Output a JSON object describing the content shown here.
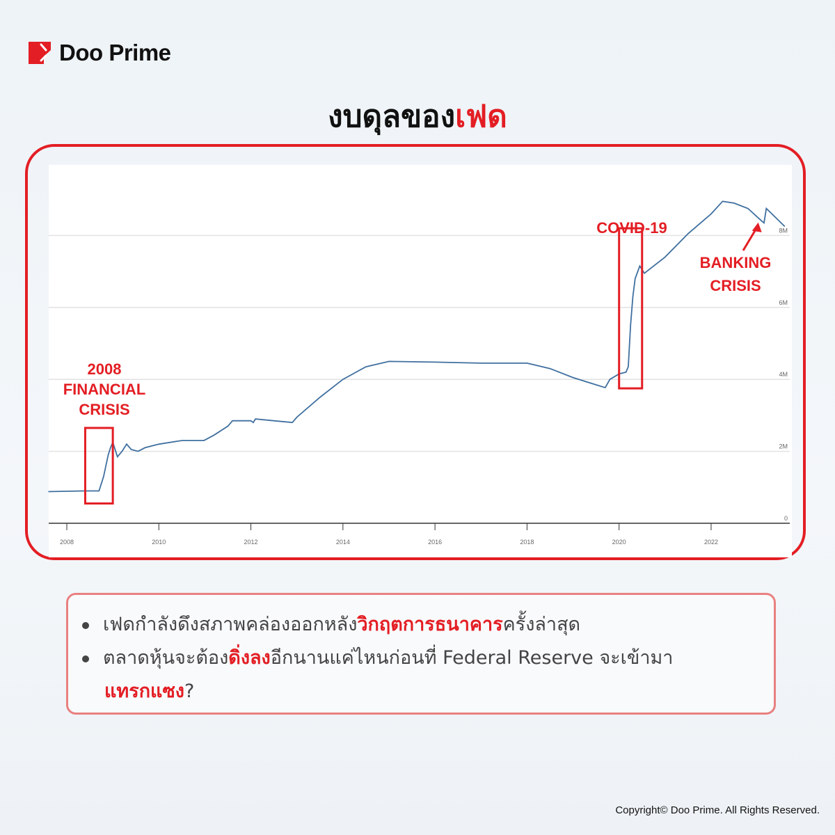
{
  "brand": {
    "name": "Doo Prime",
    "color": "#e31e24"
  },
  "title": {
    "prefix": "งบดุลของ",
    "highlight": "เฟด"
  },
  "chart_data": {
    "type": "line",
    "title": "",
    "xlabel": "",
    "ylabel": "",
    "xlim": [
      2007.6,
      2023.6
    ],
    "ylim": [
      0,
      9.5
    ],
    "x_ticks": [
      "2008",
      "2010",
      "2012",
      "2014",
      "2016",
      "2018",
      "2020",
      "2022"
    ],
    "y_ticks": [
      "0",
      "2M",
      "4M",
      "6M",
      "8M"
    ],
    "grid": true,
    "line_color": "#3f6f9f",
    "series": [
      {
        "x": [
          2007.6,
          2008.0,
          2008.4,
          2008.7,
          2008.8,
          2008.9,
          2008.95,
          2009.0,
          2009.1,
          2009.2,
          2009.3,
          2009.4,
          2009.55,
          2009.7,
          2010.0,
          2010.5,
          2010.98,
          2011.2,
          2011.5,
          2011.6,
          2012.0,
          2012.05,
          2012.1,
          2012.5,
          2012.9,
          2013.0,
          2013.5,
          2014.0,
          2014.5,
          2015.0,
          2016.0,
          2017.0,
          2018.0,
          2018.5,
          2019.0,
          2019.5,
          2019.7,
          2019.8,
          2020.0,
          2020.15,
          2020.2,
          2020.25,
          2020.3,
          2020.35,
          2020.45,
          2020.55,
          2021.0,
          2021.5,
          2022.0,
          2022.25,
          2022.5,
          2022.8,
          2023.1,
          2023.15,
          2023.2,
          2023.4,
          2023.6
        ],
        "y": [
          0.88,
          0.89,
          0.9,
          0.9,
          1.3,
          1.9,
          2.1,
          2.25,
          1.85,
          2.0,
          2.2,
          2.05,
          2.0,
          2.1,
          2.2,
          2.3,
          2.3,
          2.45,
          2.7,
          2.85,
          2.85,
          2.8,
          2.9,
          2.85,
          2.8,
          2.95,
          3.5,
          4.0,
          4.35,
          4.5,
          4.48,
          4.45,
          4.45,
          4.3,
          4.05,
          3.85,
          3.77,
          4.0,
          4.15,
          4.2,
          4.35,
          5.5,
          6.3,
          6.8,
          7.15,
          6.95,
          7.4,
          8.05,
          8.6,
          8.95,
          8.9,
          8.75,
          8.4,
          8.35,
          8.75,
          8.5,
          8.25
        ]
      }
    ],
    "annotations": [
      {
        "label_lines": [
          "2008",
          "FINANCIAL",
          "CRISIS"
        ],
        "x_range": [
          2008.4,
          2009.0
        ],
        "y_range": [
          0.55,
          2.65
        ]
      },
      {
        "label_lines": [
          "COVID-19"
        ],
        "x_range": [
          2020.0,
          2020.5
        ],
        "y_range": [
          3.75,
          8.2
        ]
      },
      {
        "label_lines": [
          "BANKING",
          "CRISIS"
        ],
        "arrow_to": [
          2023.1,
          8.4
        ]
      }
    ]
  },
  "notes": [
    {
      "parts": [
        {
          "text": "เฟดกำลังดึงสภาพคล่องออกหลัง",
          "hl": false
        },
        {
          "text": "วิกฤตการธนาคาร",
          "hl": true
        },
        {
          "text": "ครั้งล่าสุด",
          "hl": false
        }
      ]
    },
    {
      "parts": [
        {
          "text": "ตลาดหุ้นจะต้อง",
          "hl": false
        },
        {
          "text": "ดิ่งลง",
          "hl": true
        },
        {
          "text": "อีกนานแค่ไหนก่อนที่  Federal  Reserve  จะเข้ามา",
          "hl": false
        }
      ],
      "continuation": [
        {
          "text": "แทรกแซง",
          "hl": true
        },
        {
          "text": "?",
          "hl": false
        }
      ]
    }
  ],
  "copyright": "Copyright© Doo Prime. All Rights Reserved."
}
